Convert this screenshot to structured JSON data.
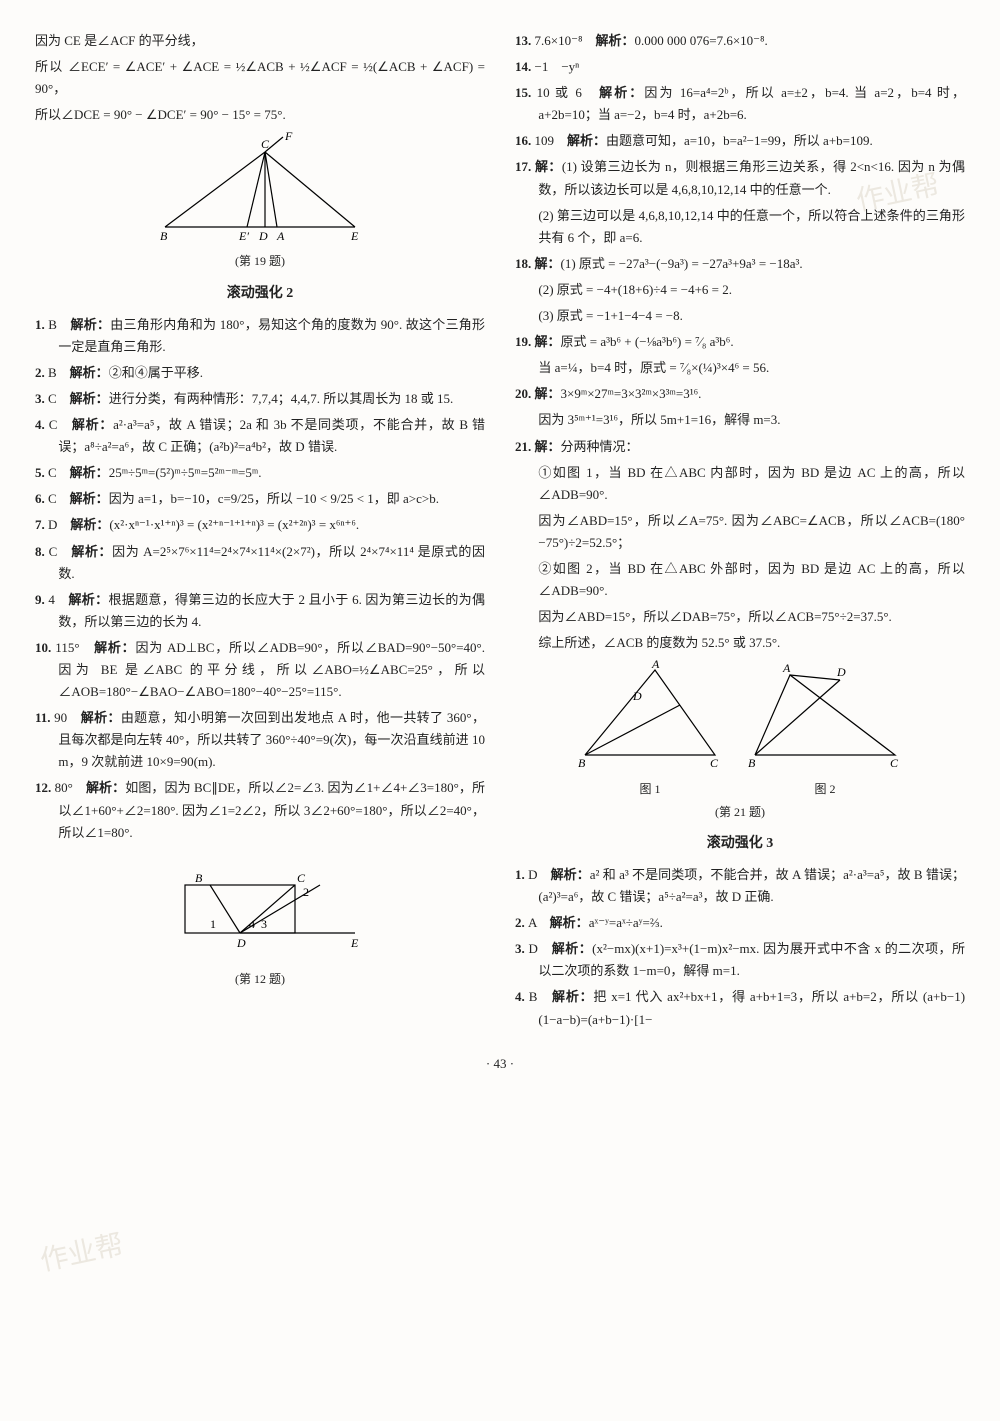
{
  "page_number": "· 43 ·",
  "watermark": "作业帮",
  "col_left": {
    "pre": [
      "因为 CE 是∠ACF 的平分线，",
      "所以 ∠ECE′ = ∠ACE′ + ∠ACE = ½∠ACB + ½∠ACF = ½(∠ACB + ∠ACF) = 90°，",
      "所以∠DCE = 90° − ∠DCE′ = 90° − 15° = 75°."
    ],
    "fig19_caption": "(第 19 题)",
    "heading": "滚动强化 2",
    "items": [
      {
        "n": "1.",
        "a": "B",
        "t": "解析：由三角形内角和为 180°，易知这个角的度数为 90°. 故这个三角形一定是直角三角形."
      },
      {
        "n": "2.",
        "a": "B",
        "t": "解析：②和④属于平移."
      },
      {
        "n": "3.",
        "a": "C",
        "t": "解析：进行分类，有两种情形：7,7,4；4,4,7. 所以其周长为 18 或 15."
      },
      {
        "n": "4.",
        "a": "C",
        "t": "解析：a²·a³=a⁵，故 A 错误；2a 和 3b 不是同类项，不能合并，故 B 错误；a⁸÷a²=a⁶，故 C 正确；(a²b)²=a⁴b²，故 D 错误."
      },
      {
        "n": "5.",
        "a": "C",
        "t": "解析：25ᵐ÷5ᵐ=(5²)ᵐ÷5ᵐ=5²ᵐ⁻ᵐ=5ᵐ."
      },
      {
        "n": "6.",
        "a": "C",
        "t": "解析：因为 a=1，b=−10，c=9/25，所以 −10 < 9/25 < 1，即 a>c>b."
      },
      {
        "n": "7.",
        "a": "D",
        "t": "解析：(x²·xⁿ⁻¹·x¹⁺ⁿ)³ = (x²⁺ⁿ⁻¹⁺¹⁺ⁿ)³ = (x²⁺²ⁿ)³ = x⁶ⁿ⁺⁶."
      },
      {
        "n": "8.",
        "a": "C",
        "t": "解析：因为 A=2⁵×7⁶×11⁴=2⁴×7⁴×11⁴×(2×7²)，所以 2⁴×7⁴×11⁴ 是原式的因数."
      },
      {
        "n": "9.",
        "a": "4",
        "t": "解析：根据题意，得第三边的长应大于 2 且小于 6. 因为第三边长的为偶数，所以第三边的长为 4."
      },
      {
        "n": "10.",
        "a": "115°",
        "t": "解析：因为 AD⊥BC，所以∠ADB=90°，所以∠BAD=90°−50°=40°. 因为 BE 是∠ABC 的平分线，所以∠ABO=½∠ABC=25°，所以∠AOB=180°−∠BAO−∠ABO=180°−40°−25°=115°."
      },
      {
        "n": "11.",
        "a": "90",
        "t": "解析：由题意，知小明第一次回到出发地点 A 时，他一共转了 360°，且每次都是向左转 40°，所以共转了 360°÷40°=9(次)，每一次沿直线前进 10 m，9 次就前进 10×9=90(m)."
      },
      {
        "n": "12.",
        "a": "80°",
        "t": "解析：如图，因为 BC∥DE，所以∠2=∠3. 因为∠1+∠4+∠3=180°，所以∠1+60°+∠2=180°. 因为∠1=2∠2，所以 3∠2+60°=180°，所以∠2=40°，所以∠1=80°."
      }
    ],
    "fig12_caption": "(第 12 题)"
  },
  "col_right": {
    "items_a": [
      {
        "n": "13.",
        "a": "7.6×10⁻⁸",
        "t": "解析：0.000 000 076=7.6×10⁻⁸."
      },
      {
        "n": "14.",
        "a": "−1　−yⁿ",
        "t": ""
      },
      {
        "n": "15.",
        "a": "10 或 6",
        "t": "解析：因为 16=a⁴=2ᵇ，所以 a=±2，b=4. 当 a=2，b=4 时，a+2b=10；当 a=−2，b=4 时，a+2b=6."
      },
      {
        "n": "16.",
        "a": "109",
        "t": "解析：由题意可知，a=10，b=a²−1=99，所以 a+b=109."
      },
      {
        "n": "17.",
        "a": "",
        "t": "解：(1) 设第三边长为 n，则根据三角形三边关系，得 2<n<16. 因为 n 为偶数，所以该边长可以是 4,6,8,10,12,14 中的任意一个."
      },
      {
        "sub": true,
        "t": "(2) 第三边可以是 4,6,8,10,12,14 中的任意一个，所以符合上述条件的三角形共有 6 个，即 a=6."
      },
      {
        "n": "18.",
        "a": "",
        "t": "解：(1) 原式 = −27a³−(−9a³) = −27a³+9a³ = −18a³."
      },
      {
        "sub": true,
        "t": "(2) 原式 = −4+(18+6)÷4 = −4+6 = 2."
      },
      {
        "sub": true,
        "t": "(3) 原式 = −1+1−4−4 = −8."
      },
      {
        "n": "19.",
        "a": "",
        "t": "解：原式 = a³b⁶ + (−⅛a³b⁶) = ⁷⁄₈ a³b⁶."
      },
      {
        "sub": true,
        "t": "当 a=¼，b=4 时，原式 = ⁷⁄₈×(¼)³×4⁶ = 56."
      },
      {
        "n": "20.",
        "a": "",
        "t": "解：3×9ᵐ×27ᵐ=3×3²ᵐ×3³ᵐ=3¹⁶."
      },
      {
        "sub": true,
        "t": "因为 3⁵ᵐ⁺¹=3¹⁶，所以 5m+1=16，解得 m=3."
      },
      {
        "n": "21.",
        "a": "",
        "t": "解：分两种情况："
      },
      {
        "sub": true,
        "t": "①如图 1，当 BD 在△ABC 内部时，因为 BD 是边 AC 上的高，所以∠ADB=90°."
      },
      {
        "sub": true,
        "t": "因为∠ABD=15°，所以∠A=75°. 因为∠ABC=∠ACB，所以∠ACB=(180°−75°)÷2=52.5°；"
      },
      {
        "sub": true,
        "t": "②如图 2，当 BD 在△ABC 外部时，因为 BD 是边 AC 上的高，所以∠ADB=90°."
      },
      {
        "sub": true,
        "t": "因为∠ABD=15°，所以∠DAB=75°，所以∠ACB=75°÷2=37.5°."
      },
      {
        "sub": true,
        "t": "综上所述，∠ACB 的度数为 52.5° 或 37.5°."
      }
    ],
    "fig21_cap1": "图 1",
    "fig21_cap2": "图 2",
    "fig21_caption": "(第 21 题)",
    "heading": "滚动强化 3",
    "items_b": [
      {
        "n": "1.",
        "a": "D",
        "t": "解析：a² 和 a³ 不是同类项，不能合并，故 A 错误；a²·a³=a⁵，故 B 错误；(a²)³=a⁶，故 C 错误；a⁵÷a²=a³，故 D 正确."
      },
      {
        "n": "2.",
        "a": "A",
        "t": "解析：aˣ⁻ʸ=aˣ÷aʸ=⅔."
      },
      {
        "n": "3.",
        "a": "D",
        "t": "解析：(x²−mx)(x+1)=x³+(1−m)x²−mx. 因为展开式中不含 x 的二次项，所以二次项的系数 1−m=0，解得 m=1."
      },
      {
        "n": "4.",
        "a": "B",
        "t": "解析：把 x=1 代入 ax²+bx+1，得 a+b+1=3，所以 a+b=2，所以 (a+b−1)(1−a−b)=(a+b−1)·[1−"
      }
    ]
  },
  "svg": {
    "stroke": "#000",
    "stroke_width": 1.2,
    "font": "12px serif"
  }
}
